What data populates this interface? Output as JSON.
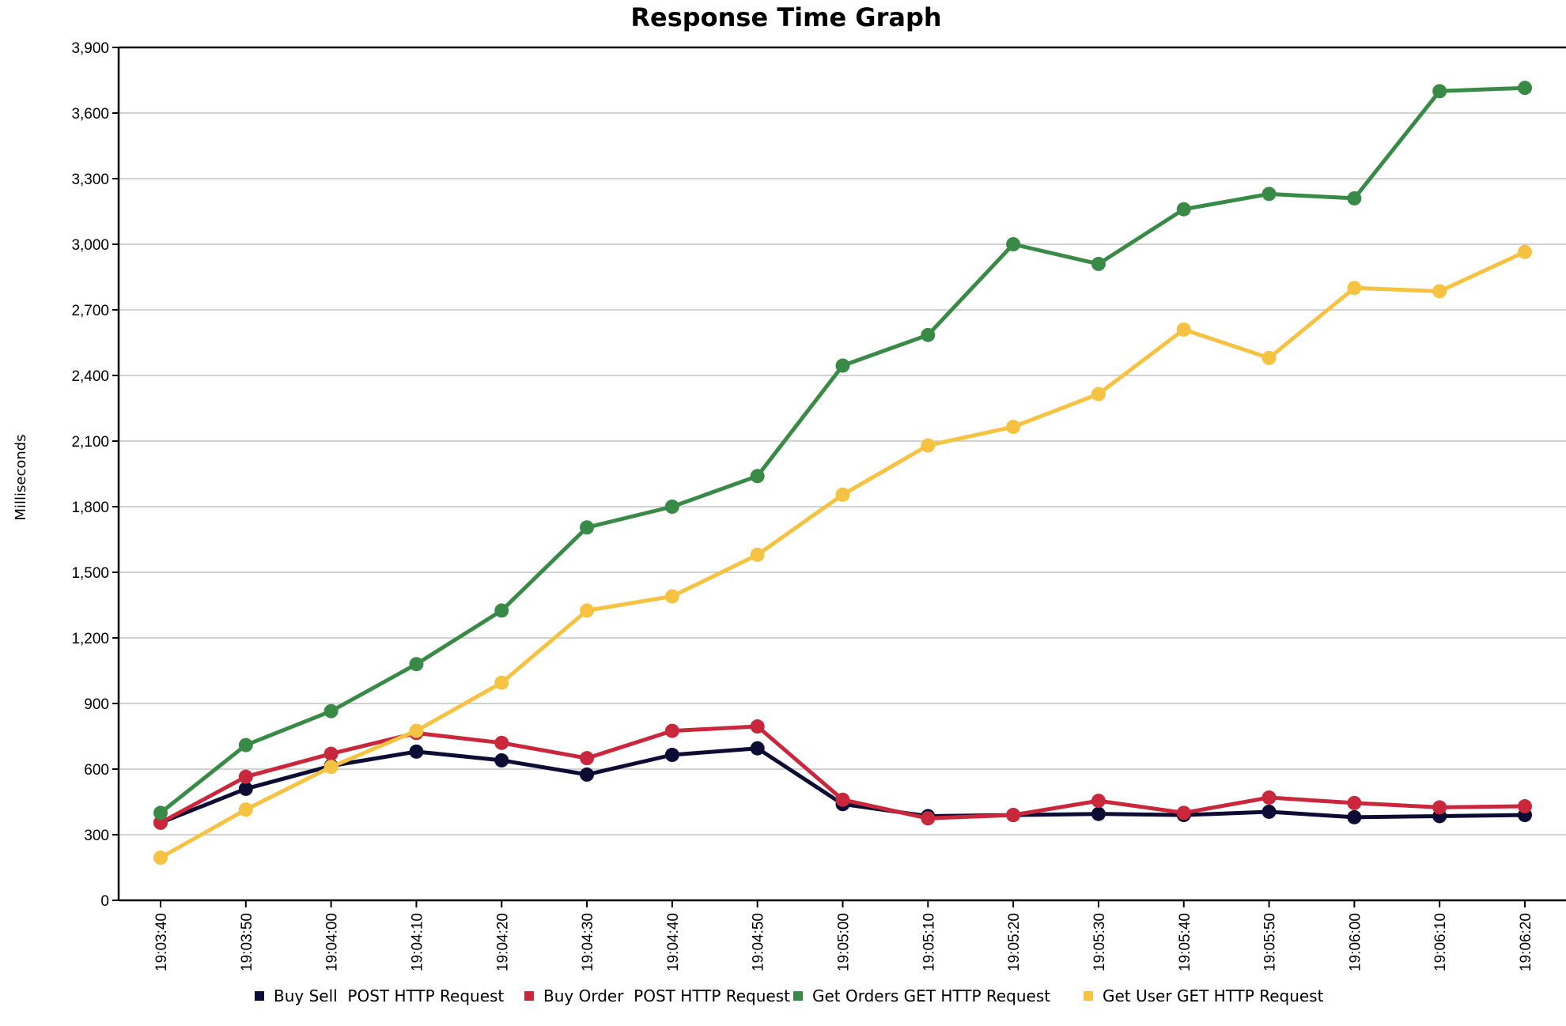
{
  "chart_data": {
    "type": "line",
    "title": "Response Time Graph",
    "xlabel": "",
    "ylabel": "Milliseconds",
    "ylim": [
      0,
      3900
    ],
    "yticks": [
      0,
      300,
      600,
      900,
      1200,
      1500,
      1800,
      2100,
      2400,
      2700,
      3000,
      3300,
      3600,
      3900
    ],
    "ytick_labels": [
      "0",
      "300",
      "600",
      "900",
      "1,200",
      "1,500",
      "1,800",
      "2,100",
      "2,400",
      "2,700",
      "3,000",
      "3,300",
      "3,600",
      "3,900"
    ],
    "grid": true,
    "legend_position": "bottom",
    "x": [
      "19:03:40",
      "19:03:50",
      "19:04:00",
      "19:04:10",
      "19:04:20",
      "19:04:30",
      "19:04:40",
      "19:04:50",
      "19:05:00",
      "19:05:10",
      "19:05:20",
      "19:05:30",
      "19:05:40",
      "19:05:50",
      "19:06:00",
      "19:06:10",
      "19:06:20"
    ],
    "series": [
      {
        "name": "Buy Sell  POST HTTP Request",
        "color": "#0c0c34",
        "values": [
          355,
          510,
          615,
          680,
          640,
          575,
          665,
          695,
          440,
          385,
          390,
          395,
          390,
          405,
          380,
          385,
          390
        ]
      },
      {
        "name": "Buy Order  POST HTTP Request",
        "color": "#c9283c",
        "values": [
          355,
          565,
          670,
          765,
          720,
          650,
          775,
          795,
          460,
          375,
          390,
          455,
          400,
          470,
          445,
          425,
          430
        ]
      },
      {
        "name": "Get Orders GET HTTP Request",
        "color": "#3a8a47",
        "values": [
          400,
          710,
          865,
          1080,
          1325,
          1705,
          1800,
          1940,
          2445,
          2585,
          3000,
          2910,
          3160,
          3230,
          3210,
          3700,
          3715
        ]
      },
      {
        "name": "Get User GET HTTP Request",
        "color": "#f5c242",
        "values": [
          195,
          415,
          610,
          775,
          995,
          1325,
          1390,
          1580,
          1855,
          2080,
          2165,
          2315,
          2610,
          2480,
          2800,
          2785,
          2965
        ]
      }
    ]
  }
}
